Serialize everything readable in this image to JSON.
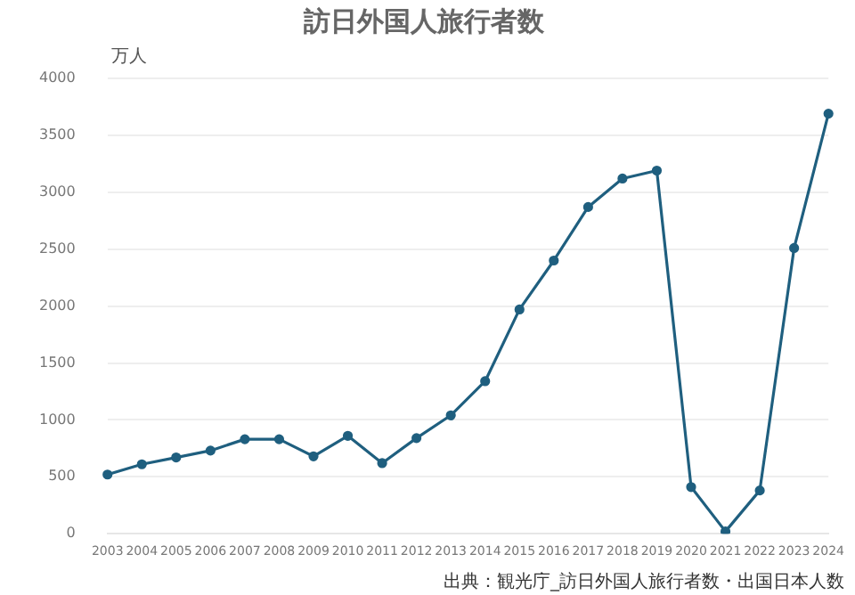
{
  "chart_data": {
    "type": "line",
    "title": "訪日外国人旅行者数",
    "ylabel": "万人",
    "annotations": [
      "出典：観光庁_訪日外国人旅行者数・出国日本人数"
    ],
    "categories": [
      "2003",
      "2004",
      "2005",
      "2006",
      "2007",
      "2008",
      "2009",
      "2010",
      "2011",
      "2012",
      "2013",
      "2014",
      "2015",
      "2016",
      "2017",
      "2018",
      "2019",
      "2020",
      "2021",
      "2022",
      "2023",
      "2024"
    ],
    "series": [
      {
        "color": "#1f5f7f",
        "values": [
          520,
          610,
          670,
          730,
          830,
          830,
          680,
          860,
          620,
          840,
          1040,
          1340,
          1970,
          2400,
          2870,
          3120,
          3190,
          410,
          20,
          380,
          2510,
          3690
        ]
      }
    ],
    "ylim": [
      0,
      4000
    ],
    "yticks": [
      0,
      500,
      1000,
      1500,
      2000,
      2500,
      3000,
      3500,
      4000
    ],
    "grid": "y",
    "legend": false,
    "marker": "circle",
    "line_style": "solid"
  }
}
